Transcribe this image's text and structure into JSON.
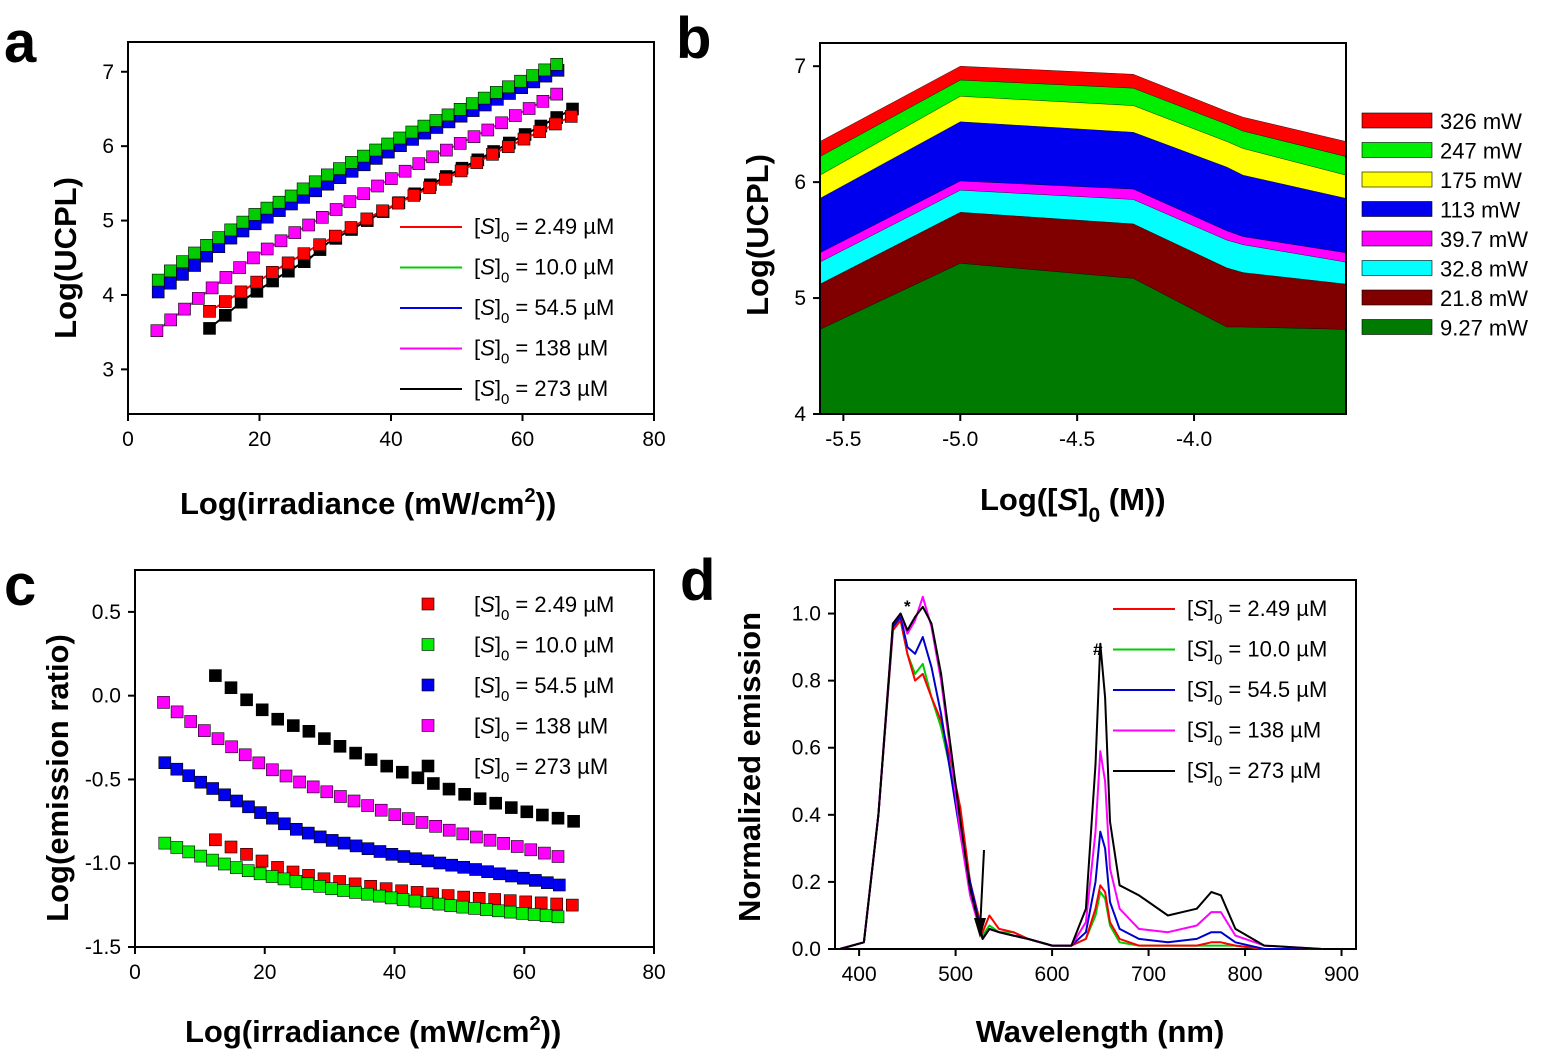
{
  "chart_data": [
    {
      "id": "a",
      "panel_label": "a",
      "type": "line",
      "xlabel_pre": "Log(irradiance (mW/cm",
      "xlabel_sup": "2",
      "xlabel_post": "))",
      "ylabel": "Log(UCPL)",
      "xlim": [
        0,
        80
      ],
      "ylim": [
        2.4,
        7.4
      ],
      "xticks": [
        "0",
        "20",
        "40",
        "60",
        "80"
      ],
      "xtick_values": [
        0,
        20,
        40,
        60,
        80
      ],
      "yticks": [
        "3",
        "4",
        "5",
        "6",
        "7"
      ],
      "ytick_values": [
        3,
        4,
        5,
        6,
        7
      ],
      "legend_placement": "bottom-right",
      "marker": "square",
      "marker_size": 12,
      "series": [
        {
          "name_a": "[",
          "name_i": "S",
          "name_b": "]",
          "name_sub": "0",
          "name_c": " = 2.49 µM",
          "color": "#ff0000",
          "x_start": 12.4,
          "x_end": 67.4,
          "n": 24,
          "x": [
            12.4,
            17.9,
            22.8,
            28.0,
            37.5,
            45.4,
            55.2,
            67.4
          ],
          "y": [
            3.78,
            4.08,
            4.35,
            4.62,
            5.08,
            5.42,
            5.88,
            6.4
          ]
        },
        {
          "name_a": "[",
          "name_i": "S",
          "name_b": "]",
          "name_sub": "0",
          "name_c": " = 10.0 µM",
          "color": "#00cc00",
          "x_start": 4.6,
          "x_end": 65.2,
          "n": 34,
          "x": [
            4.6,
            9.5,
            15.0,
            19.6,
            24.4,
            30.0,
            37.0,
            45.0,
            55.0,
            65.2
          ],
          "y": [
            4.2,
            4.53,
            4.84,
            5.1,
            5.31,
            5.6,
            5.92,
            6.27,
            6.68,
            7.1
          ]
        },
        {
          "name_a": "[",
          "name_i": "S",
          "name_b": "]",
          "name_sub": "0",
          "name_c": " = 54.5 µM",
          "color": "#0000ee",
          "x_start": 4.6,
          "x_end": 65.4,
          "n": 34,
          "x": [
            4.6,
            10.2,
            15.0,
            19.6,
            24.4,
            30.0,
            37.0,
            45.0,
            55.0,
            65.4
          ],
          "y": [
            4.04,
            4.4,
            4.73,
            4.97,
            5.2,
            5.47,
            5.8,
            6.17,
            6.58,
            7.02
          ]
        },
        {
          "name_a": "[",
          "name_i": "S",
          "name_b": "]",
          "name_sub": "0",
          "name_c": " = 138 µM",
          "color": "#ff00ff",
          "x_start": 4.4,
          "x_end": 65.2,
          "n": 30,
          "x": [
            4.4,
            9.9,
            15.1,
            19.9,
            25.0,
            30.7,
            37.0,
            45.0,
            55.0,
            65.2
          ],
          "y": [
            3.52,
            3.9,
            4.25,
            4.55,
            4.82,
            5.1,
            5.42,
            5.8,
            6.23,
            6.7
          ]
        },
        {
          "name_a": "[",
          "name_i": "S",
          "name_b": "]",
          "name_sub": "0",
          "name_c": " = 273 µM",
          "color": "#000000",
          "x_start": 12.4,
          "x_end": 67.6,
          "n": 24,
          "x": [
            12.4,
            17.7,
            22.9,
            27.6,
            30.4,
            38.0,
            46.0,
            55.0,
            67.6
          ],
          "y": [
            3.55,
            3.94,
            4.24,
            4.49,
            4.7,
            5.08,
            5.48,
            5.9,
            6.5
          ]
        }
      ]
    },
    {
      "id": "b",
      "panel_label": "b",
      "type": "area",
      "xlabel_pre": "Log([",
      "xlabel_i": "S",
      "xlabel_post1": "]",
      "xlabel_sub": "0",
      "xlabel_post2": " (M))",
      "ylabel": "Log(UCPL)",
      "xlim": [
        -5.6,
        -3.35
      ],
      "ylim": [
        4,
        7.2
      ],
      "xticks": [
        "-5.5",
        "-5.0",
        "-4.5",
        "-4.0"
      ],
      "xtick_values": [
        -5.5,
        -5.0,
        -4.5,
        -4.0
      ],
      "yticks": [
        "4",
        "5",
        "6",
        "7"
      ],
      "ytick_values": [
        4,
        5,
        6,
        7
      ],
      "legend_placement": "right",
      "x": [
        -5.6,
        -5.0,
        -4.26,
        -3.86,
        -3.79,
        -3.35
      ],
      "series": [
        {
          "name": "326 mW",
          "color": "#ff0000",
          "values": [
            6.35,
            7.0,
            6.93,
            6.61,
            6.56,
            6.35
          ]
        },
        {
          "name": "247 mW",
          "color": "#00ee00",
          "values": [
            6.22,
            6.88,
            6.81,
            6.5,
            6.44,
            6.22
          ]
        },
        {
          "name": "175 mW",
          "color": "#ffff00",
          "values": [
            6.06,
            6.74,
            6.66,
            6.35,
            6.29,
            6.06
          ]
        },
        {
          "name": "113 mW",
          "color": "#0000ee",
          "values": [
            5.86,
            6.52,
            6.43,
            6.13,
            6.06,
            5.86
          ]
        },
        {
          "name": "39.7 mW",
          "color": "#ff00ff",
          "values": [
            5.39,
            6.01,
            5.94,
            5.58,
            5.53,
            5.39
          ]
        },
        {
          "name": "32.8 mW",
          "color": "#00ffff",
          "values": [
            5.31,
            5.93,
            5.85,
            5.5,
            5.46,
            5.31
          ]
        },
        {
          "name": "21.8 mW",
          "color": "#800000",
          "values": [
            5.12,
            5.74,
            5.64,
            5.26,
            5.22,
            5.12
          ]
        },
        {
          "name": "9.27 mW",
          "color": "#007a00",
          "values": [
            4.73,
            5.3,
            5.17,
            4.75,
            4.75,
            4.73
          ]
        }
      ]
    },
    {
      "id": "c",
      "panel_label": "c",
      "type": "scatter",
      "xlabel_pre": "Log(irradiance (mW/cm",
      "xlabel_sup": "2",
      "xlabel_post": "))",
      "ylabel": "Log(emission ratio)",
      "xlim": [
        0,
        80
      ],
      "ylim": [
        -1.5,
        0.75
      ],
      "xticks": [
        "0",
        "20",
        "40",
        "60",
        "80"
      ],
      "xtick_values": [
        0,
        20,
        40,
        60,
        80
      ],
      "yticks": [
        "-1.5",
        "-1.0",
        "-0.5",
        "0.0",
        "0.5"
      ],
      "ytick_values": [
        -1.5,
        -1.0,
        -0.5,
        0.0,
        0.5
      ],
      "legend_placement": "top-right",
      "marker": "square",
      "marker_size": 12,
      "series": [
        {
          "name_a": "[",
          "name_i": "S",
          "name_b": "]",
          "name_sub": "0",
          "name_c": " = 2.49 µM",
          "color": "#ff0000",
          "x_start": 12.4,
          "x_end": 67.4,
          "n": 24,
          "x": [
            12.4,
            17.9,
            22.9,
            30.0,
            40.0,
            50.0,
            60.0,
            67.4
          ],
          "y": [
            -0.86,
            -0.96,
            -1.04,
            -1.1,
            -1.16,
            -1.2,
            -1.23,
            -1.25
          ]
        },
        {
          "name_a": "[",
          "name_i": "S",
          "name_b": "]",
          "name_sub": "0",
          "name_c": " = 10.0 µM",
          "color": "#00ee00",
          "x_start": 4.6,
          "x_end": 65.2,
          "n": 34,
          "x": [
            4.6,
            9.5,
            15.0,
            20.0,
            25.0,
            30.0,
            40.0,
            50.0,
            60.0,
            65.2
          ],
          "y": [
            -0.88,
            -0.95,
            -1.02,
            -1.07,
            -1.11,
            -1.15,
            -1.21,
            -1.26,
            -1.3,
            -1.32
          ]
        },
        {
          "name_a": "[",
          "name_i": "S",
          "name_b": "]",
          "name_sub": "0",
          "name_c": " = 54.5 µM",
          "color": "#0000ee",
          "x_start": 4.6,
          "x_end": 65.4,
          "n": 34,
          "x": [
            4.6,
            9.8,
            15.2,
            20.0,
            25.0,
            30.0,
            40.0,
            50.0,
            60.0,
            65.4
          ],
          "y": [
            -0.4,
            -0.51,
            -0.62,
            -0.71,
            -0.8,
            -0.86,
            -0.95,
            -1.02,
            -1.09,
            -1.13
          ]
        },
        {
          "name_a": "[",
          "name_i": "S",
          "name_b": "]",
          "name_sub": "0",
          "name_c": " = 138 µM",
          "color": "#ff00ff",
          "x_start": 4.4,
          "x_end": 65.2,
          "n": 30,
          "x": [
            4.4,
            9.9,
            15.1,
            19.9,
            25.0,
            30.0,
            40.0,
            50.0,
            60.0,
            65.2
          ],
          "y": [
            -0.04,
            -0.19,
            -0.31,
            -0.42,
            -0.51,
            -0.58,
            -0.71,
            -0.82,
            -0.91,
            -0.96
          ]
        },
        {
          "name_a": "[",
          "name_i": "S",
          "name_b": "]",
          "name_sub": "0",
          "name_c": " = 273 µM",
          "color": "#000000",
          "x_start": 12.4,
          "x_end": 67.6,
          "n": 24,
          "x": [
            12.4,
            17.7,
            22.4,
            27.3,
            32.0,
            40.0,
            50.0,
            60.0,
            67.6
          ],
          "y": [
            0.12,
            -0.04,
            -0.15,
            -0.22,
            -0.31,
            -0.44,
            -0.58,
            -0.69,
            -0.75
          ]
        }
      ]
    },
    {
      "id": "d",
      "panel_label": "d",
      "type": "line",
      "xlabel": "Wavelength (nm)",
      "ylabel": "Normalized emission",
      "xlim": [
        375,
        915
      ],
      "ylim": [
        0,
        1.1
      ],
      "xticks": [
        "400",
        "500",
        "600",
        "700",
        "800",
        "900"
      ],
      "xtick_values": [
        400,
        500,
        600,
        700,
        800,
        900
      ],
      "yticks": [
        "0.0",
        "0.2",
        "0.4",
        "0.6",
        "0.8",
        "1.0"
      ],
      "ytick_values": [
        0,
        0.2,
        0.4,
        0.6,
        0.8,
        1.0
      ],
      "legend_placement": "top-right",
      "annotations": {
        "star": "*",
        "hash": "#"
      },
      "series": [
        {
          "name_a": "[",
          "name_i": "S",
          "name_b": "]",
          "name_sub": "0",
          "name_c": " = 2.49 µM",
          "color": "#ff0000",
          "x": [
            380,
            405,
            420,
            435,
            443,
            450,
            458,
            466,
            475,
            485,
            495,
            505,
            515,
            522,
            528,
            535,
            545,
            560,
            575,
            600,
            620,
            635,
            645,
            650,
            655,
            660,
            670,
            690,
            720,
            750,
            765,
            775,
            790,
            820,
            880
          ],
          "y": [
            0.0,
            0.02,
            0.4,
            0.95,
            0.98,
            0.88,
            0.8,
            0.82,
            0.75,
            0.68,
            0.56,
            0.42,
            0.2,
            0.12,
            0.05,
            0.1,
            0.06,
            0.05,
            0.03,
            0.01,
            0.01,
            0.03,
            0.12,
            0.19,
            0.17,
            0.08,
            0.03,
            0.01,
            0.01,
            0.01,
            0.02,
            0.02,
            0.01,
            0.0,
            0.0
          ]
        },
        {
          "name_a": "[",
          "name_i": "S",
          "name_b": "]",
          "name_sub": "0",
          "name_c": " = 10.0 µM",
          "color": "#00cc00",
          "x": [
            380,
            405,
            420,
            435,
            443,
            450,
            458,
            466,
            475,
            485,
            495,
            505,
            515,
            522,
            528,
            535,
            545,
            560,
            575,
            600,
            620,
            635,
            645,
            650,
            655,
            660,
            670,
            690,
            720,
            750,
            765,
            775,
            790,
            820,
            880
          ],
          "y": [
            0.0,
            0.02,
            0.4,
            0.95,
            0.98,
            0.88,
            0.82,
            0.85,
            0.75,
            0.66,
            0.53,
            0.38,
            0.18,
            0.1,
            0.04,
            0.07,
            0.05,
            0.05,
            0.03,
            0.01,
            0.01,
            0.03,
            0.1,
            0.17,
            0.15,
            0.07,
            0.02,
            0.01,
            0.01,
            0.01,
            0.01,
            0.01,
            0.01,
            0.0,
            0.0
          ]
        },
        {
          "name_a": "[",
          "name_i": "S",
          "name_b": "]",
          "name_sub": "0",
          "name_c": " = 54.5 µM",
          "color": "#0000cc",
          "x": [
            380,
            405,
            420,
            435,
            443,
            450,
            458,
            466,
            475,
            485,
            495,
            505,
            515,
            522,
            528,
            535,
            545,
            560,
            575,
            600,
            620,
            635,
            645,
            650,
            655,
            660,
            670,
            690,
            720,
            750,
            765,
            775,
            790,
            820,
            880
          ],
          "y": [
            0.0,
            0.02,
            0.4,
            0.96,
            0.99,
            0.9,
            0.88,
            0.93,
            0.84,
            0.7,
            0.52,
            0.34,
            0.2,
            0.11,
            0.03,
            0.06,
            0.05,
            0.04,
            0.03,
            0.01,
            0.01,
            0.05,
            0.2,
            0.35,
            0.3,
            0.14,
            0.06,
            0.03,
            0.02,
            0.03,
            0.05,
            0.05,
            0.02,
            0.0,
            0.0
          ]
        },
        {
          "name_a": "[",
          "name_i": "S",
          "name_b": "]",
          "name_sub": "0",
          "name_c": " = 138 µM",
          "color": "#ff00ff",
          "x": [
            380,
            405,
            420,
            435,
            443,
            450,
            458,
            466,
            475,
            485,
            495,
            505,
            515,
            522,
            528,
            535,
            545,
            560,
            575,
            600,
            620,
            635,
            645,
            650,
            655,
            660,
            670,
            690,
            720,
            750,
            765,
            775,
            790,
            820,
            880
          ],
          "y": [
            0.0,
            0.02,
            0.4,
            0.97,
            1.0,
            0.94,
            0.98,
            1.05,
            0.96,
            0.8,
            0.58,
            0.34,
            0.16,
            0.09,
            0.03,
            0.06,
            0.05,
            0.04,
            0.03,
            0.01,
            0.01,
            0.08,
            0.35,
            0.59,
            0.5,
            0.24,
            0.12,
            0.06,
            0.05,
            0.07,
            0.11,
            0.11,
            0.04,
            0.01,
            0.0
          ]
        },
        {
          "name_a": "[",
          "name_i": "S",
          "name_b": "]",
          "name_sub": "0",
          "name_c": " = 273 µM",
          "color": "#000000",
          "x": [
            380,
            405,
            420,
            435,
            443,
            450,
            458,
            466,
            475,
            485,
            495,
            505,
            515,
            522,
            528,
            535,
            545,
            560,
            575,
            600,
            620,
            635,
            645,
            650,
            655,
            660,
            670,
            690,
            720,
            750,
            765,
            775,
            790,
            820,
            880
          ],
          "y": [
            0.0,
            0.02,
            0.4,
            0.97,
            1.0,
            0.95,
            0.99,
            1.02,
            0.97,
            0.82,
            0.6,
            0.38,
            0.18,
            0.1,
            0.03,
            0.06,
            0.05,
            0.04,
            0.03,
            0.01,
            0.01,
            0.12,
            0.55,
            0.91,
            0.75,
            0.38,
            0.19,
            0.16,
            0.1,
            0.12,
            0.17,
            0.16,
            0.06,
            0.01,
            0.0
          ]
        }
      ]
    }
  ]
}
